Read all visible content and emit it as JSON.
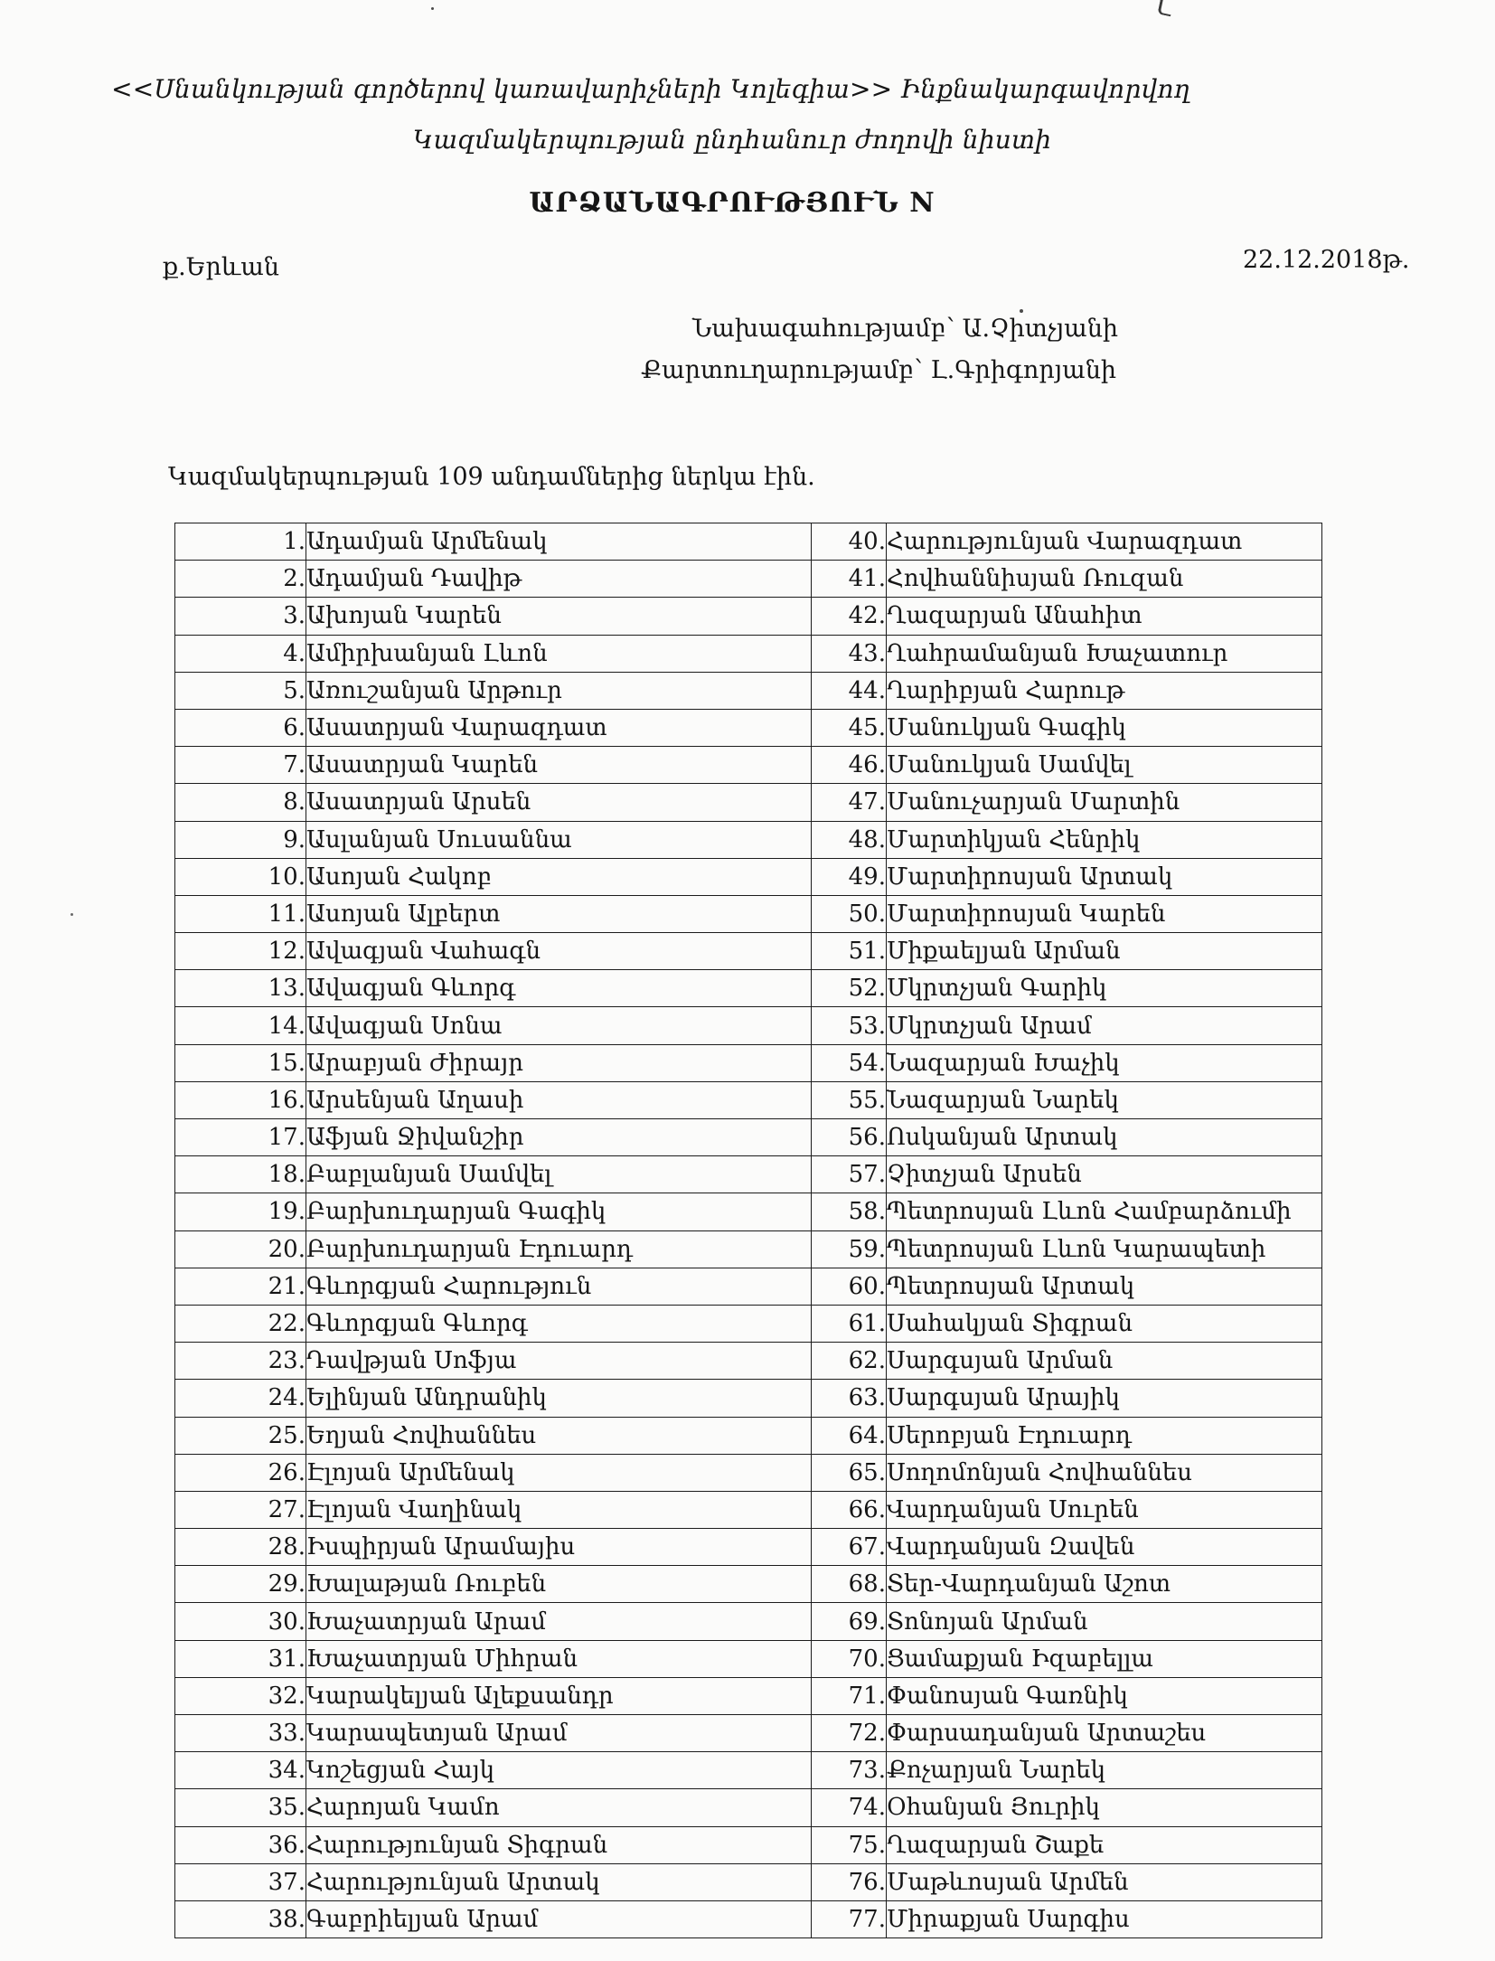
{
  "page": {
    "header_line1": "<<Սնանկության գործերով կառավարիչների Կոլեգիա>> Ինքնակարգավորվող",
    "header_line2": "Կազմակերպության ընդհանուր ժողովի նիստի",
    "title": "ԱՐՁԱՆԱԳՐՈՒԹՅՈՒՆ N",
    "place": "ք.Երևան",
    "date": "22.12.2018թ.",
    "presiding": "Նախագահությամբ՝ Ա.Չիտչյանի",
    "secretary": "Քարտուղարությամբ՝ Լ.Գրիգորյանի",
    "attendance": "Կազմակերպության 109 անդամներից ներկա էին."
  },
  "attendees": {
    "rows": [
      {
        "n1": "1.",
        "name1": "Ադամյան Արմենակ",
        "n2": "40.",
        "name2": "Հարությունյան Վարազդատ"
      },
      {
        "n1": "2.",
        "name1": "Ադամյան Դավիթ",
        "n2": "41.",
        "name2": "Հովհաննիսյան Ռուզան"
      },
      {
        "n1": "3.",
        "name1": "Ախոյան Կարեն",
        "n2": "42.",
        "name2": "Ղազարյան Անահիտ"
      },
      {
        "n1": "4.",
        "name1": "Ամիրխանյան Լևոն",
        "n2": "43.",
        "name2": "Ղահրամանյան Խաչատուր"
      },
      {
        "n1": "5.",
        "name1": "Առուշանյան Արթուր",
        "n2": "44.",
        "name2": "Ղարիբյան Հարութ"
      },
      {
        "n1": "6.",
        "name1": "Ասատրյան Վարազդատ",
        "n2": "45.",
        "name2": "Մանուկյան Գագիկ"
      },
      {
        "n1": "7.",
        "name1": "Ասատրյան Կարեն",
        "n2": "46.",
        "name2": "Մանուկյան Սամվել"
      },
      {
        "n1": "8.",
        "name1": "Ասատրյան Արսեն",
        "n2": "47.",
        "name2": "Մանուչարյան Մարտին"
      },
      {
        "n1": "9.",
        "name1": "Ասլանյան Սուսաննա",
        "n2": "48.",
        "name2": "Մարտիկյան Հենրիկ"
      },
      {
        "n1": "10.",
        "name1": "Ասոյան Հակոբ",
        "n2": "49.",
        "name2": "Մարտիրոսյան Արտակ"
      },
      {
        "n1": "11.",
        "name1": "Ասոյան Ալբերտ",
        "n2": "50.",
        "name2": "Մարտիրոսյան Կարեն"
      },
      {
        "n1": "12.",
        "name1": "Ավագյան Վահագն",
        "n2": "51.",
        "name2": "Միքաելյան Արման"
      },
      {
        "n1": "13.",
        "name1": "Ավագյան Գևորգ",
        "n2": "52.",
        "name2": "Մկրտչյան Գարիկ"
      },
      {
        "n1": "14.",
        "name1": "Ավագյան Սոնա",
        "n2": "53.",
        "name2": "Մկրտչյան Արամ"
      },
      {
        "n1": "15.",
        "name1": "Արաբյան Ժիրայր",
        "n2": "54.",
        "name2": "Նազարյան Խաչիկ"
      },
      {
        "n1": "16.",
        "name1": "Արսենյան Աղասի",
        "n2": "55.",
        "name2": "Նազարյան Նարեկ"
      },
      {
        "n1": "17.",
        "name1": "Աֆյան Ջիվանշիր",
        "n2": "56.",
        "name2": "Ոսկանյան Արտակ"
      },
      {
        "n1": "18.",
        "name1": "Բաբլանյան Սամվել",
        "n2": "57.",
        "name2": "Չիտչյան Արսեն"
      },
      {
        "n1": "19.",
        "name1": "Բարխուդարյան Գագիկ",
        "n2": "58.",
        "name2": "Պետրոսյան Լևոն Համբարձումի"
      },
      {
        "n1": "20.",
        "name1": "Բարխուդարյան Էդուարդ",
        "n2": "59.",
        "name2": "Պետրոսյան Լևոն Կարապետի"
      },
      {
        "n1": "21.",
        "name1": "Գևորգյան Հարություն",
        "n2": "60.",
        "name2": "Պետրոսյան Արտակ"
      },
      {
        "n1": "22.",
        "name1": "Գևորգյան Գևորգ",
        "n2": "61.",
        "name2": "Սահակյան Տիգրան"
      },
      {
        "n1": "23.",
        "name1": "Դավթյան Սոֆյա",
        "n2": "62.",
        "name2": "Սարգսյան Արման"
      },
      {
        "n1": "24.",
        "name1": "Ելինյան Անդրանիկ",
        "n2": "63.",
        "name2": "Սարգսյան Արայիկ"
      },
      {
        "n1": "25.",
        "name1": "Եղյան Հովհաննես",
        "n2": "64.",
        "name2": "Սերոբյան Էդուարդ"
      },
      {
        "n1": "26.",
        "name1": "Էլոյան Արմենակ",
        "n2": "65.",
        "name2": "Սողոմոնյան Հովհաննես"
      },
      {
        "n1": "27.",
        "name1": "Էլոյան Վաղինակ",
        "n2": "66.",
        "name2": "Վարդանյան Սուրեն"
      },
      {
        "n1": "28.",
        "name1": "Իսպիրյան Արամայիս",
        "n2": "67.",
        "name2": "Վարդանյան Զավեն"
      },
      {
        "n1": "29.",
        "name1": "Խալաթյան Ռուբեն",
        "n2": "68.",
        "name2": "Տեր-Վարդանյան Աշոտ"
      },
      {
        "n1": "30.",
        "name1": "Խաչատրյան Արամ",
        "n2": "69.",
        "name2": "Տոնոյան Արման"
      },
      {
        "n1": "31.",
        "name1": "Խաչատրյան Միհրան",
        "n2": "70.",
        "name2": "Ցամաքյան Իզաբելլա"
      },
      {
        "n1": "32.",
        "name1": "Կարակելյան Ալեքսանդր",
        "n2": "71.",
        "name2": "Փանոսյան Գառնիկ"
      },
      {
        "n1": "33.",
        "name1": "Կարապետյան Արամ",
        "n2": "72.",
        "name2": "Փարսադանյան Արտաշես"
      },
      {
        "n1": "34.",
        "name1": "Կոշեցյան Հայկ",
        "n2": "73.",
        "name2": "Քոչարյան Նարեկ"
      },
      {
        "n1": "35.",
        "name1": "Հարոյան Կամո",
        "n2": "74.",
        "name2": "Օհանյան Յուրիկ"
      },
      {
        "n1": "36.",
        "name1": "Հարությունյան Տիգրան",
        "n2": "75.",
        "name2": "Ղազարյան Շաքե"
      },
      {
        "n1": "37.",
        "name1": "Հարությունյան Արտակ",
        "n2": "76.",
        "name2": "Մաթևոսյան Արմեն"
      },
      {
        "n1": "38.",
        "name1": "Գաբրիելյան Արամ",
        "n2": "77.",
        "name2": "Միրաքյան Սարգիս"
      }
    ]
  }
}
